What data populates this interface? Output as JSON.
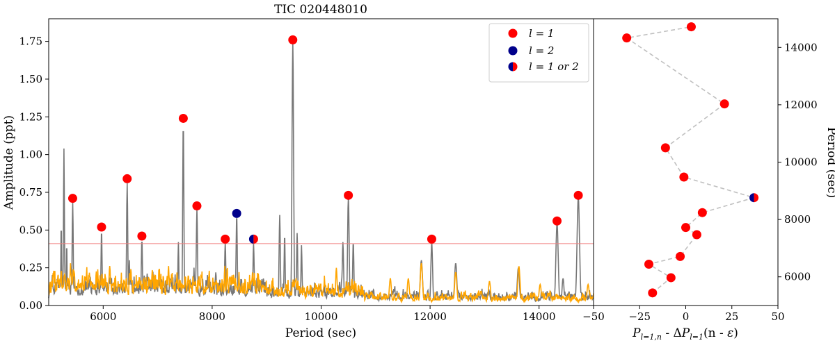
{
  "title": "TIC 020448010",
  "chart_data": [
    {
      "type": "line",
      "title": "TIC 020448010",
      "xlabel": "Period (sec)",
      "ylabel": "Amplitude (ppt)",
      "xlim": [
        5000,
        15000
      ],
      "ylim": [
        0,
        1.9
      ],
      "xticks": [
        6000,
        8000,
        10000,
        12000,
        14000
      ],
      "xtick_labels": [
        "6000",
        "8000",
        "10000",
        "12000",
        "14000"
      ],
      "yticks": [
        0,
        0.25,
        0.5,
        0.75,
        1.0,
        1.25,
        1.5,
        1.75
      ],
      "ytick_labels": [
        "0.00",
        "0.25",
        "0.50",
        "0.75",
        "1.00",
        "1.25",
        "1.50",
        "1.75"
      ],
      "threshold": {
        "y": 0.41,
        "color": "#f08080"
      },
      "grey_peaks": [
        {
          "x": 5280,
          "y": 1.04,
          "w": 12
        },
        {
          "x": 5230,
          "y": 0.55,
          "w": 10
        },
        {
          "x": 5330,
          "y": 0.42,
          "w": 10
        },
        {
          "x": 5440,
          "y": 0.68,
          "w": 14
        },
        {
          "x": 5970,
          "y": 0.5,
          "w": 14
        },
        {
          "x": 6440,
          "y": 0.81,
          "w": 15
        },
        {
          "x": 6480,
          "y": 0.3,
          "w": 12
        },
        {
          "x": 6710,
          "y": 0.44,
          "w": 15
        },
        {
          "x": 7380,
          "y": 0.42,
          "w": 12
        },
        {
          "x": 7470,
          "y": 1.21,
          "w": 15
        },
        {
          "x": 7720,
          "y": 0.64,
          "w": 16
        },
        {
          "x": 8240,
          "y": 0.42,
          "w": 16
        },
        {
          "x": 8450,
          "y": 0.6,
          "w": 16
        },
        {
          "x": 8760,
          "y": 0.41,
          "w": 16
        },
        {
          "x": 9240,
          "y": 0.6,
          "w": 16
        },
        {
          "x": 9330,
          "y": 0.47,
          "w": 14
        },
        {
          "x": 9480,
          "y": 1.75,
          "w": 20
        },
        {
          "x": 9560,
          "y": 0.48,
          "w": 14
        },
        {
          "x": 9640,
          "y": 0.4,
          "w": 14
        },
        {
          "x": 10400,
          "y": 0.42,
          "w": 18
        },
        {
          "x": 10500,
          "y": 0.72,
          "w": 20
        },
        {
          "x": 10590,
          "y": 0.42,
          "w": 16
        },
        {
          "x": 11840,
          "y": 0.3,
          "w": 30
        },
        {
          "x": 12030,
          "y": 0.42,
          "w": 22
        },
        {
          "x": 12470,
          "y": 0.28,
          "w": 30
        },
        {
          "x": 13620,
          "y": 0.25,
          "w": 30
        },
        {
          "x": 14330,
          "y": 0.55,
          "w": 30
        },
        {
          "x": 14440,
          "y": 0.18,
          "w": 26
        },
        {
          "x": 14720,
          "y": 0.72,
          "w": 32
        }
      ],
      "orange_peaks": [
        {
          "x": 5400,
          "y": 0.28,
          "w": 14
        },
        {
          "x": 5620,
          "y": 0.2,
          "w": 14
        },
        {
          "x": 7030,
          "y": 0.25,
          "w": 16
        },
        {
          "x": 10280,
          "y": 0.25,
          "w": 20
        },
        {
          "x": 11270,
          "y": 0.18,
          "w": 28
        },
        {
          "x": 11600,
          "y": 0.18,
          "w": 28
        },
        {
          "x": 11840,
          "y": 0.28,
          "w": 30
        },
        {
          "x": 12470,
          "y": 0.22,
          "w": 30
        },
        {
          "x": 13090,
          "y": 0.16,
          "w": 30
        },
        {
          "x": 13630,
          "y": 0.26,
          "w": 30
        },
        {
          "x": 14020,
          "y": 0.14,
          "w": 30
        },
        {
          "x": 14900,
          "y": 0.14,
          "w": 30
        }
      ],
      "l1_peaks": [
        {
          "x": 5440,
          "y": 0.71
        },
        {
          "x": 5970,
          "y": 0.52
        },
        {
          "x": 6440,
          "y": 0.84
        },
        {
          "x": 6710,
          "y": 0.46
        },
        {
          "x": 7470,
          "y": 1.24
        },
        {
          "x": 7720,
          "y": 0.66
        },
        {
          "x": 8240,
          "y": 0.44
        },
        {
          "x": 9480,
          "y": 1.76
        },
        {
          "x": 10500,
          "y": 0.73
        },
        {
          "x": 12030,
          "y": 0.44
        },
        {
          "x": 14330,
          "y": 0.56
        },
        {
          "x": 14720,
          "y": 0.73
        }
      ],
      "l2_peaks": [
        {
          "x": 8450,
          "y": 0.61
        }
      ],
      "l12_peaks": [
        {
          "x": 8760,
          "y": 0.44
        }
      ],
      "legend": {
        "placement": "top-right",
        "entries": [
          "l = 1",
          "l = 2",
          "l = 1 or 2"
        ]
      },
      "colors": {
        "l1": "#ff0000",
        "l2": "#00008b",
        "grey_line": "#777777",
        "orange_line": "#ffa500"
      }
    },
    {
      "type": "scatter",
      "xlabel": "P l=1,n - ΔP l=1 (n - ε)",
      "ylabel": "Period (sec)",
      "xlim": [
        -50,
        50
      ],
      "ylim": [
        5000,
        15000
      ],
      "xticks": [
        -50,
        -25,
        0,
        25,
        50
      ],
      "xtick_labels": [
        "−50",
        "−25",
        "0",
        "25",
        "50"
      ],
      "yticks": [
        6000,
        8000,
        10000,
        12000,
        14000
      ],
      "ytick_labels": [
        "6000",
        "8000",
        "10000",
        "12000",
        "14000"
      ],
      "points": [
        {
          "x": -18,
          "y": 5440,
          "type": "l1"
        },
        {
          "x": -8,
          "y": 5970,
          "type": "l1"
        },
        {
          "x": -20,
          "y": 6440,
          "type": "l1"
        },
        {
          "x": -3,
          "y": 6710,
          "type": "l1"
        },
        {
          "x": 6,
          "y": 7470,
          "type": "l1"
        },
        {
          "x": 0,
          "y": 7720,
          "type": "l1"
        },
        {
          "x": 9,
          "y": 8240,
          "type": "l1"
        },
        {
          "x": 37,
          "y": 8760,
          "type": "l12"
        },
        {
          "x": -1,
          "y": 9480,
          "type": "l1"
        },
        {
          "x": -11,
          "y": 10500,
          "type": "l1"
        },
        {
          "x": 21,
          "y": 12030,
          "type": "l1"
        },
        {
          "x": -32,
          "y": 14330,
          "type": "l1"
        },
        {
          "x": 3,
          "y": 14720,
          "type": "l1"
        }
      ]
    }
  ]
}
